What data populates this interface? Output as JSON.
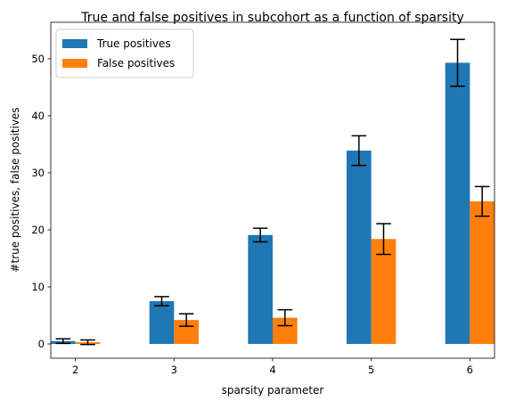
{
  "chart_data": {
    "type": "bar",
    "title": "True and false positives in subcohort as a function of sparsity",
    "xlabel": "sparsity parameter",
    "ylabel": "#true positives, false positives",
    "categories": [
      "2",
      "3",
      "4",
      "5",
      "6"
    ],
    "ylim": [
      -2.5,
      56.4
    ],
    "yticks": [
      0,
      10,
      20,
      30,
      40,
      50
    ],
    "legend_position": "top-left",
    "grid": false,
    "series": [
      {
        "name": "True positives",
        "color": "#1f77b4",
        "values": [
          0.5,
          7.5,
          19.1,
          33.9,
          49.3
        ],
        "errors": [
          0.4,
          0.8,
          1.2,
          2.6,
          4.1
        ]
      },
      {
        "name": "False positives",
        "color": "#ff7f0e",
        "values": [
          0.3,
          4.2,
          4.6,
          18.4,
          25.0
        ],
        "errors": [
          0.4,
          1.1,
          1.4,
          2.7,
          2.6
        ]
      }
    ]
  }
}
